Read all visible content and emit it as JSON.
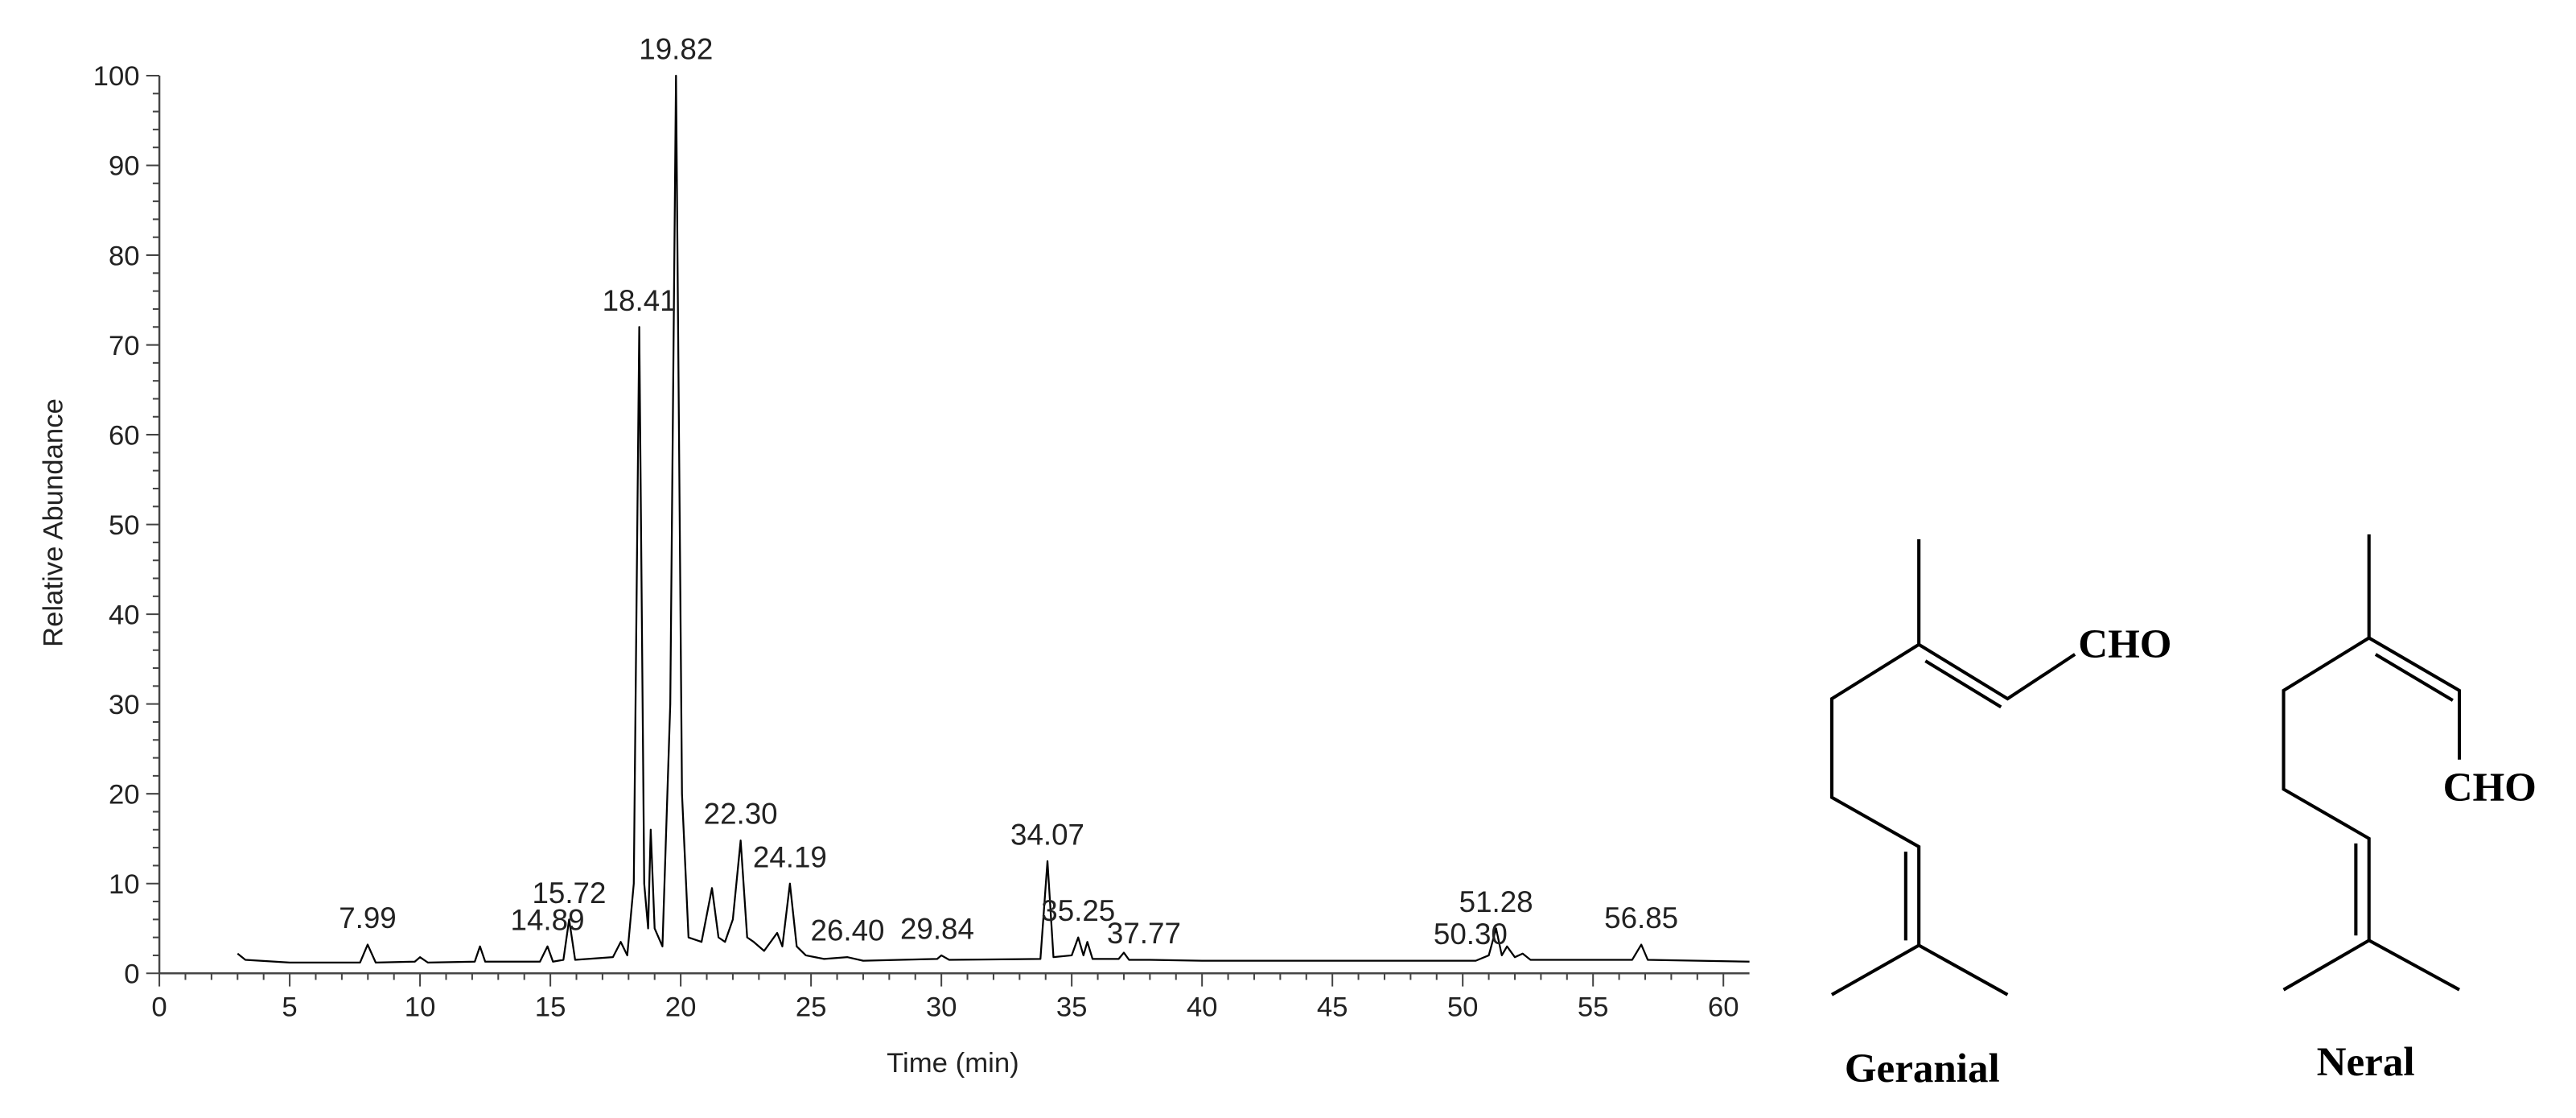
{
  "chart_data": {
    "type": "line",
    "xlabel": "Time (min)",
    "ylabel": "Relative Abundance",
    "x": [
      3.0,
      3.3,
      5,
      7.7,
      7.99,
      8.3,
      9.8,
      10,
      10.3,
      12.1,
      12.3,
      12.5,
      14.6,
      14.89,
      15.1,
      15.5,
      15.72,
      15.95,
      17.4,
      17.7,
      17.95,
      18.2,
      18.41,
      18.6,
      18.75,
      18.85,
      19.0,
      19.3,
      19.6,
      19.82,
      20.05,
      20.3,
      20.8,
      21.2,
      21.45,
      21.7,
      22.0,
      22.3,
      22.55,
      22.8,
      23.2,
      23.7,
      23.9,
      24.19,
      24.45,
      24.8,
      25.5,
      26.4,
      27,
      29.84,
      30,
      30.3,
      33.8,
      34.07,
      34.3,
      35,
      35.25,
      35.45,
      35.6,
      35.8,
      36.8,
      37,
      37.2,
      38,
      40,
      45,
      50.5,
      51,
      51.28,
      51.5,
      51.7,
      52,
      52.3,
      52.6,
      56.5,
      56.85,
      57.1,
      61
    ],
    "series": [
      {
        "color": "#000000",
        "values": [
          2.2,
          1.5,
          1.2,
          1.2,
          3.2,
          1.2,
          1.3,
          1.8,
          1.2,
          1.3,
          3.0,
          1.3,
          1.3,
          3.0,
          1.3,
          1.5,
          6.0,
          1.5,
          1.8,
          3.5,
          2.0,
          10,
          72,
          10,
          5,
          16,
          5,
          3,
          30,
          100,
          20,
          4,
          3.5,
          9.5,
          4,
          3.5,
          6,
          14.8,
          4,
          3.5,
          2.5,
          4.5,
          3,
          10,
          3,
          2,
          1.6,
          1.8,
          1.4,
          1.6,
          2.0,
          1.5,
          1.6,
          12.5,
          1.8,
          2,
          4,
          2,
          3.5,
          1.6,
          1.6,
          2.3,
          1.5,
          1.5,
          1.4,
          1.4,
          1.4,
          2,
          5,
          2,
          3,
          1.8,
          2.2,
          1.5,
          1.5,
          3.2,
          1.5,
          1.3
        ]
      }
    ],
    "annotations": [
      {
        "value": 7.99,
        "label": "7.99"
      },
      {
        "value": 14.89,
        "label": "14.89"
      },
      {
        "value": 15.72,
        "label": "15.72"
      },
      {
        "value": 18.41,
        "label": "18.41"
      },
      {
        "value": 19.82,
        "label": "19.82"
      },
      {
        "value": 22.3,
        "label": "22.30"
      },
      {
        "value": 24.19,
        "label": "24.19"
      },
      {
        "value": 26.4,
        "label": "26.40"
      },
      {
        "value": 29.84,
        "label": "29.84"
      },
      {
        "value": 34.07,
        "label": "34.07"
      },
      {
        "value": 35.25,
        "label": "35.25"
      },
      {
        "value": 37.77,
        "label": "37.77"
      },
      {
        "value": 50.3,
        "label": "50.30"
      },
      {
        "value": 51.28,
        "label": "51.28"
      },
      {
        "value": 56.85,
        "label": "56.85"
      }
    ],
    "xlim": [
      0,
      61
    ],
    "xticks": [
      0,
      5,
      10,
      15,
      20,
      25,
      30,
      35,
      40,
      45,
      50,
      55,
      60
    ],
    "ylim": [
      0,
      100
    ],
    "yticks": [
      0,
      10,
      20,
      30,
      40,
      50,
      60,
      70,
      80,
      90,
      100
    ]
  },
  "structures": [
    {
      "name": "Geranial",
      "group": "CHO"
    },
    {
      "name": "Neral",
      "group": "CHO"
    }
  ]
}
